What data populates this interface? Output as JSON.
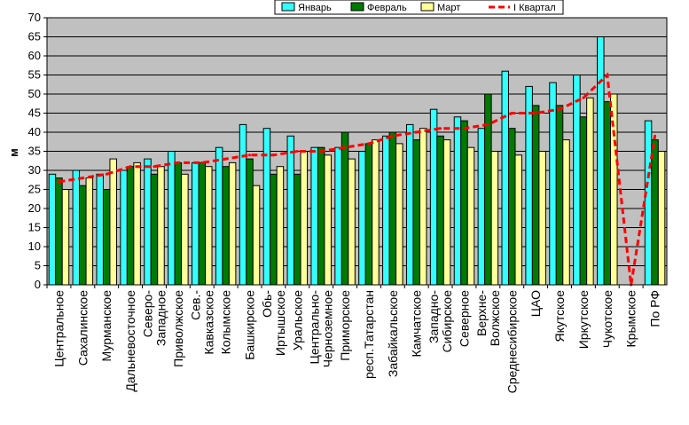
{
  "chart_data": {
    "type": "bar",
    "ylabel": "м",
    "ylim": [
      0,
      70
    ],
    "yticks": [
      0,
      5,
      10,
      15,
      20,
      25,
      30,
      35,
      40,
      45,
      50,
      55,
      60,
      65,
      70
    ],
    "grid": true,
    "legend_position": "top-right",
    "categories": [
      "Центральное",
      "Сахалинское",
      "Мурманское",
      "Дальневосточное",
      "Северо-Западное",
      "Приволжское",
      "Сев.-Кавказское",
      "Колымское",
      "Башкирское",
      "Обь-Иртышское",
      "Уральское",
      "Центрально-Черноземное",
      "Приморское",
      "респ.Татарстан",
      "Забайкальское",
      "Камчатское",
      "Западно-Сибирское",
      "Северное",
      "Верхне-Волжское",
      "Среднесибирское",
      "ЦАО",
      "Якутское",
      "Иркутское",
      "Чукотское",
      "Крымское",
      "По РФ"
    ],
    "category_lines": [
      [
        "Центральное"
      ],
      [
        "Сахалинское"
      ],
      [
        "Мурманское"
      ],
      [
        "Дальневосточное"
      ],
      [
        "Северо-",
        "Западное"
      ],
      [
        "Приволжское"
      ],
      [
        "Сев.-",
        "Кавказское"
      ],
      [
        "Колымское"
      ],
      [
        "Башкирское"
      ],
      [
        "Обь-",
        "Иртышское"
      ],
      [
        "Уральское"
      ],
      [
        "Центрально-",
        "Черноземное"
      ],
      [
        "Приморское"
      ],
      [
        "респ.Татарстан"
      ],
      [
        "Забайкальское"
      ],
      [
        "Камчатское"
      ],
      [
        "Западно-",
        "Сибирское"
      ],
      [
        "Северное"
      ],
      [
        "Верхне-",
        "Волжское"
      ],
      [
        "Среднесибирское"
      ],
      [
        "ЦАО"
      ],
      [
        "Якутское"
      ],
      [
        "Иркутское"
      ],
      [
        "Чукотское"
      ],
      [
        "Крымское"
      ],
      [
        "По РФ"
      ]
    ],
    "series": [
      {
        "name": "Январь",
        "kind": "bar",
        "color": "#33ffff",
        "values": [
          29,
          30,
          29,
          30,
          33,
          35,
          32,
          36,
          42,
          41,
          39,
          36,
          36,
          35,
          39,
          42,
          46,
          44,
          41,
          56,
          52,
          53,
          55,
          65,
          null,
          43
        ]
      },
      {
        "name": "Февраль",
        "kind": "bar",
        "color": "#007a00",
        "values": [
          28,
          26,
          25,
          31,
          29,
          32,
          32,
          31,
          33,
          29,
          29,
          36,
          40,
          37,
          40,
          38,
          39,
          43,
          50,
          41,
          47,
          47,
          44,
          48,
          null,
          38
        ]
      },
      {
        "name": "Март",
        "kind": "bar",
        "color": "#ffff99",
        "values": [
          25,
          28,
          33,
          32,
          31,
          29,
          31,
          32,
          26,
          31,
          35,
          34,
          33,
          38,
          37,
          41,
          38,
          36,
          35,
          34,
          35,
          38,
          49,
          50,
          null,
          35
        ]
      },
      {
        "name": "I Квартал",
        "kind": "line",
        "color": "#ff0000",
        "values": [
          27,
          28,
          29,
          31,
          31,
          32,
          32,
          33,
          34,
          34,
          35,
          35,
          36,
          37,
          39,
          40,
          41,
          41,
          42,
          45,
          45,
          46,
          49,
          55,
          0,
          39
        ]
      }
    ]
  }
}
